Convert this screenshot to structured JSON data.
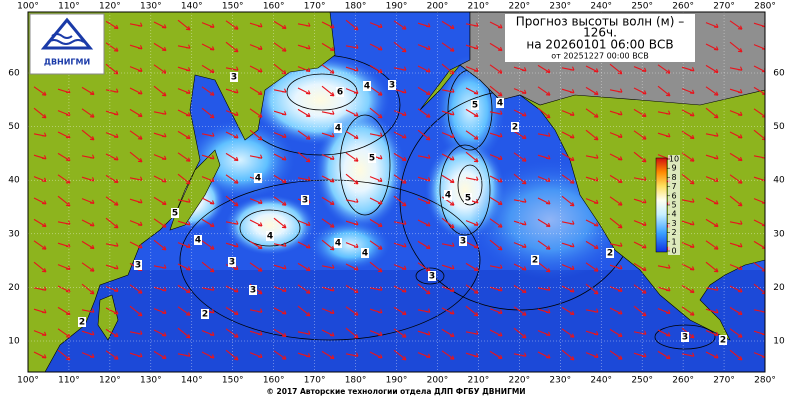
{
  "logo": {
    "text": "ДВНИГМИ"
  },
  "title": {
    "line1": "Прогноз высоты волн (м) –",
    "line2": "126ч.",
    "valid": "на 20260101 06:00 ВСВ",
    "issued": "от 20251227 00:00 ВСВ"
  },
  "lon_ticks": [
    {
      "value": 100,
      "label": "100°"
    },
    {
      "value": 110,
      "label": "110°"
    },
    {
      "value": 120,
      "label": "120°"
    },
    {
      "value": 130,
      "label": "130°"
    },
    {
      "value": 140,
      "label": "140°"
    },
    {
      "value": 150,
      "label": "150°"
    },
    {
      "value": 160,
      "label": "160°"
    },
    {
      "value": 170,
      "label": "170°"
    },
    {
      "value": 180,
      "label": "180°"
    },
    {
      "value": 190,
      "label": "190°"
    },
    {
      "value": 200,
      "label": "200°"
    },
    {
      "value": 210,
      "label": "210°"
    },
    {
      "value": 220,
      "label": "220°"
    },
    {
      "value": 230,
      "label": "230°"
    },
    {
      "value": 240,
      "label": "240°"
    },
    {
      "value": 250,
      "label": "250°"
    },
    {
      "value": 260,
      "label": "260°"
    },
    {
      "value": 270,
      "label": "270°"
    },
    {
      "value": 280,
      "label": "280°"
    }
  ],
  "lat_ticks": [
    10,
    20,
    30,
    40,
    50,
    60
  ],
  "colorbar_ticks": [
    0,
    1,
    2,
    3,
    4,
    5,
    6,
    7,
    8,
    9,
    10
  ],
  "contour_labels": [
    3,
    6,
    4,
    3,
    4,
    5,
    5,
    4,
    2,
    4,
    5,
    4,
    3,
    5,
    4,
    4,
    4,
    4,
    3,
    3,
    3,
    3,
    2,
    2,
    3,
    2,
    2,
    3,
    2
  ],
  "footer": "© 2017 Авторские технологии отдела ДЛП ФГБУ ДВНИГМИ"
}
